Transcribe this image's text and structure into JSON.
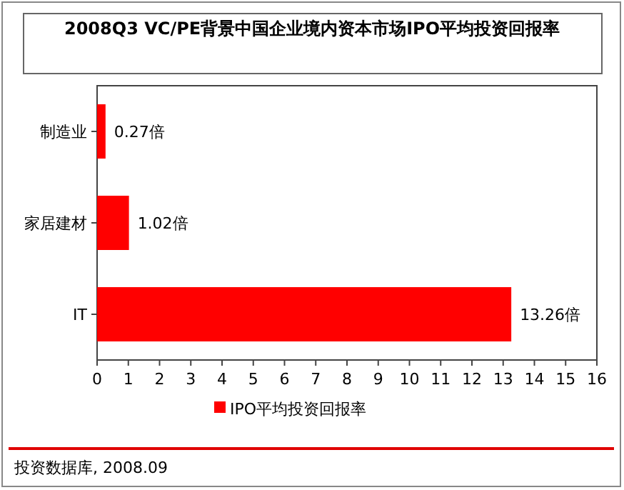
{
  "chart_data": {
    "type": "bar",
    "orientation": "horizontal",
    "title": "2008Q3 VC/PE背景中国企业境内资本市场IPO平均投资回报率",
    "categories": [
      "制造业",
      "家居建材",
      "IT"
    ],
    "series": [
      {
        "name": "IPO平均投资回报率",
        "color": "#ff0000",
        "values": [
          0.27,
          1.02,
          13.26
        ],
        "value_labels": [
          "0.27倍",
          "1.02倍",
          "13.26倍"
        ]
      }
    ],
    "xlim": [
      0,
      16
    ],
    "xticks": [
      0,
      1,
      2,
      3,
      4,
      5,
      6,
      7,
      8,
      9,
      10,
      11,
      12,
      13,
      14,
      15,
      16
    ],
    "grid": false,
    "legend": "bottom",
    "annotations": [
      "投资数据库, 2008.09"
    ]
  }
}
